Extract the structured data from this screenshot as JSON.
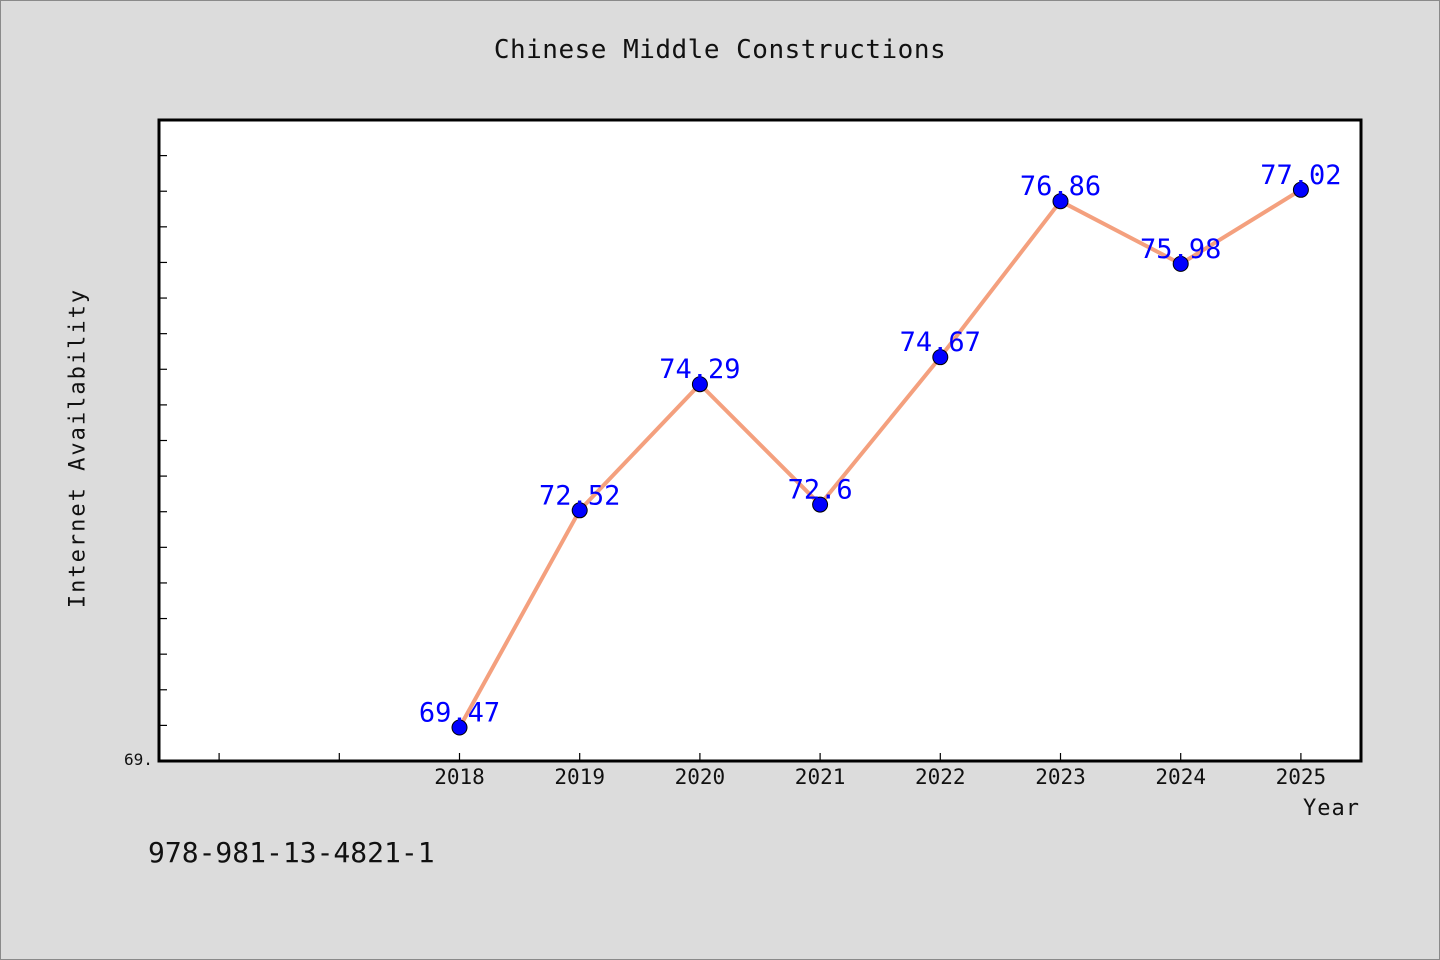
{
  "page": {
    "footer_code": "978-981-13-4821-1",
    "colors": {
      "background": "#dcdcdc",
      "plot_background": "#ffffff",
      "line": "#f4a07e",
      "marker": "#0000ff",
      "data_label": "#0000ff"
    }
  },
  "chart_data": {
    "type": "line",
    "title": "Chinese Middle Constructions",
    "xlabel": "Year",
    "ylabel": "Internet Availability",
    "x": [
      2018,
      2019,
      2020,
      2021,
      2022,
      2023,
      2024,
      2025
    ],
    "series": [
      {
        "values": [
          69.47,
          72.52,
          74.29,
          72.6,
          74.67,
          76.86,
          75.98,
          77.02
        ],
        "data_labels": [
          "69.47",
          "72.52",
          "74.29",
          "72.6",
          "74.67",
          "76.86",
          "75.98",
          "77.02"
        ]
      }
    ],
    "xlim": [
      2015.5,
      2025.5
    ],
    "ylim": [
      69.0,
      78.0
    ],
    "y_tick_label": "69.",
    "grid": false,
    "legend": "none",
    "marker": "circle"
  }
}
